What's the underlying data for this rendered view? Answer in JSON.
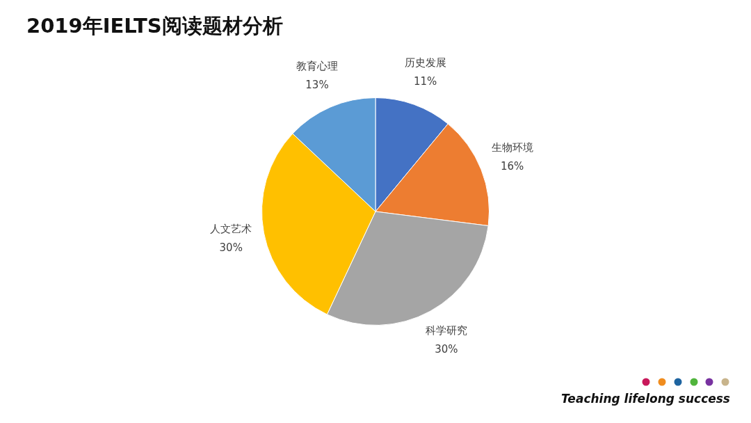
{
  "chart_data": {
    "type": "pie",
    "title": "2019年IELTS阅读题材分析",
    "categories": [
      "历史发展",
      "生物环境",
      "科学研究",
      "人文艺术",
      "教育心理"
    ],
    "values": [
      11,
      16,
      30,
      30,
      13
    ],
    "value_labels": [
      "11%",
      "16%",
      "30%",
      "30%",
      "13%"
    ],
    "colors": [
      "#4472c4",
      "#ed7d31",
      "#a5a5a5",
      "#ffc000",
      "#5b9bd5"
    ],
    "annotations": [
      "Teaching lifelong success"
    ]
  }
}
